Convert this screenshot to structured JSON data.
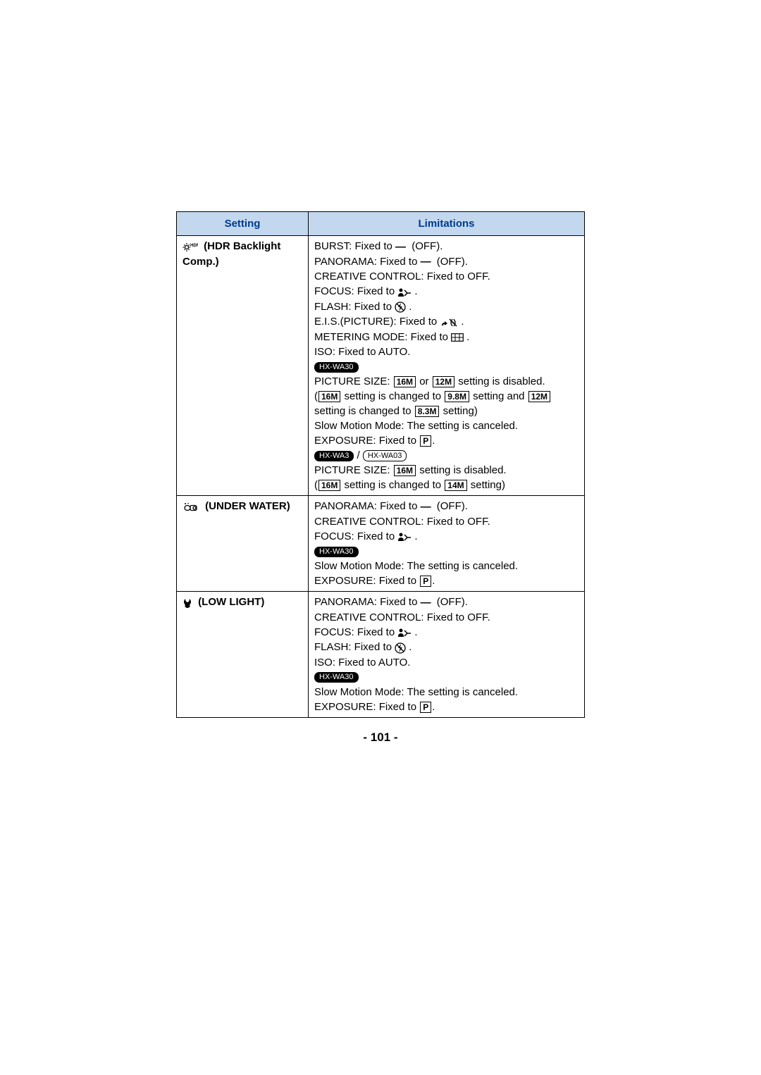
{
  "table": {
    "header": {
      "setting": "Setting",
      "limitations": "Limitations"
    },
    "rows": [
      {
        "setting_icon_name": "hdr-icon",
        "setting_label": "(HDR Backlight Comp.)",
        "lines": [
          {
            "t": "plain",
            "pre": "BURST: Fixed to ",
            "mid_icon": "dash-icon",
            "post": " (OFF)."
          },
          {
            "t": "plain",
            "pre": "PANORAMA: Fixed to ",
            "mid_icon": "dash-icon",
            "post": " (OFF)."
          },
          {
            "t": "text",
            "text": "CREATIVE CONTROL: Fixed to OFF."
          },
          {
            "t": "plain",
            "pre": "FOCUS: Fixed to ",
            "mid_icon": "af-person-icon",
            "post": "."
          },
          {
            "t": "plain",
            "pre": "FLASH: Fixed to ",
            "mid_icon": "flash-off-icon",
            "post": "."
          },
          {
            "t": "plain",
            "pre": "E.I.S.(PICTURE): Fixed to ",
            "mid_icon": "eis-off-icon",
            "post": "."
          },
          {
            "t": "plain",
            "pre": "METERING MODE: Fixed to ",
            "mid_icon": "multi-meter-icon",
            "post": "."
          },
          {
            "t": "text",
            "text": "ISO: Fixed to AUTO."
          },
          {
            "t": "badges",
            "badges": [
              {
                "style": "badge",
                "text": "HX-WA30"
              }
            ]
          },
          {
            "t": "picsize2",
            "pre": "PICTURE SIZE: ",
            "b1": "16M",
            "mid": " or ",
            "b2": "12M",
            "post": " setting is disabled."
          },
          {
            "t": "change2",
            "open": "(",
            "b1": "16M",
            "mid1": " setting is changed to ",
            "b2": "9.8M",
            "mid2": " setting and ",
            "b3": "12M",
            "mid3": " setting is changed to ",
            "b4": "8.3M",
            "post": " setting)"
          },
          {
            "t": "text",
            "text": "Slow Motion Mode: The setting is canceled."
          },
          {
            "t": "exposure",
            "pre": "EXPOSURE: Fixed to ",
            "box": "P",
            "post": "."
          },
          {
            "t": "badges",
            "badges": [
              {
                "style": "badge",
                "text": "HX-WA3"
              },
              {
                "style": "sep",
                "text": " / "
              },
              {
                "style": "badge-outline",
                "text": "HX-WA03"
              }
            ]
          },
          {
            "t": "picsize1",
            "pre": "PICTURE SIZE: ",
            "b1": "16M",
            "post": " setting is disabled."
          },
          {
            "t": "change1",
            "open": "(",
            "b1": "16M",
            "mid1": " setting is changed to ",
            "b2": "14M",
            "post": " setting)"
          }
        ]
      },
      {
        "setting_icon_name": "underwater-icon",
        "setting_label": "(UNDER WATER)",
        "lines": [
          {
            "t": "plain",
            "pre": "PANORAMA: Fixed to ",
            "mid_icon": "dash-icon",
            "post": " (OFF)."
          },
          {
            "t": "text",
            "text": "CREATIVE CONTROL: Fixed to OFF."
          },
          {
            "t": "plain",
            "pre": "FOCUS: Fixed to ",
            "mid_icon": "af-person-icon",
            "post": "."
          },
          {
            "t": "badges",
            "badges": [
              {
                "style": "badge",
                "text": "HX-WA30"
              }
            ]
          },
          {
            "t": "text",
            "text": "Slow Motion Mode: The setting is canceled."
          },
          {
            "t": "exposure",
            "pre": "EXPOSURE: Fixed to ",
            "box": "P",
            "post": "."
          }
        ]
      },
      {
        "setting_icon_name": "lowlight-icon",
        "setting_label": "(LOW LIGHT)",
        "lines": [
          {
            "t": "plain",
            "pre": "PANORAMA: Fixed to ",
            "mid_icon": "dash-icon",
            "post": " (OFF)."
          },
          {
            "t": "text",
            "text": "CREATIVE CONTROL: Fixed to OFF."
          },
          {
            "t": "plain",
            "pre": "FOCUS: Fixed to ",
            "mid_icon": "af-person-icon",
            "post": "."
          },
          {
            "t": "plain",
            "pre": "FLASH: Fixed to ",
            "mid_icon": "flash-off-icon",
            "post": "."
          },
          {
            "t": "text",
            "text": "ISO: Fixed to AUTO."
          },
          {
            "t": "badges",
            "badges": [
              {
                "style": "badge",
                "text": "HX-WA30"
              }
            ]
          },
          {
            "t": "text",
            "text": "Slow Motion Mode: The setting is canceled."
          },
          {
            "t": "exposure",
            "pre": "EXPOSURE: Fixed to ",
            "box": "P",
            "post": "."
          }
        ]
      }
    ]
  },
  "page_number": "- 101 -",
  "colors": {
    "header_bg": "#c3d8ef",
    "header_fg": "#003a8c"
  }
}
